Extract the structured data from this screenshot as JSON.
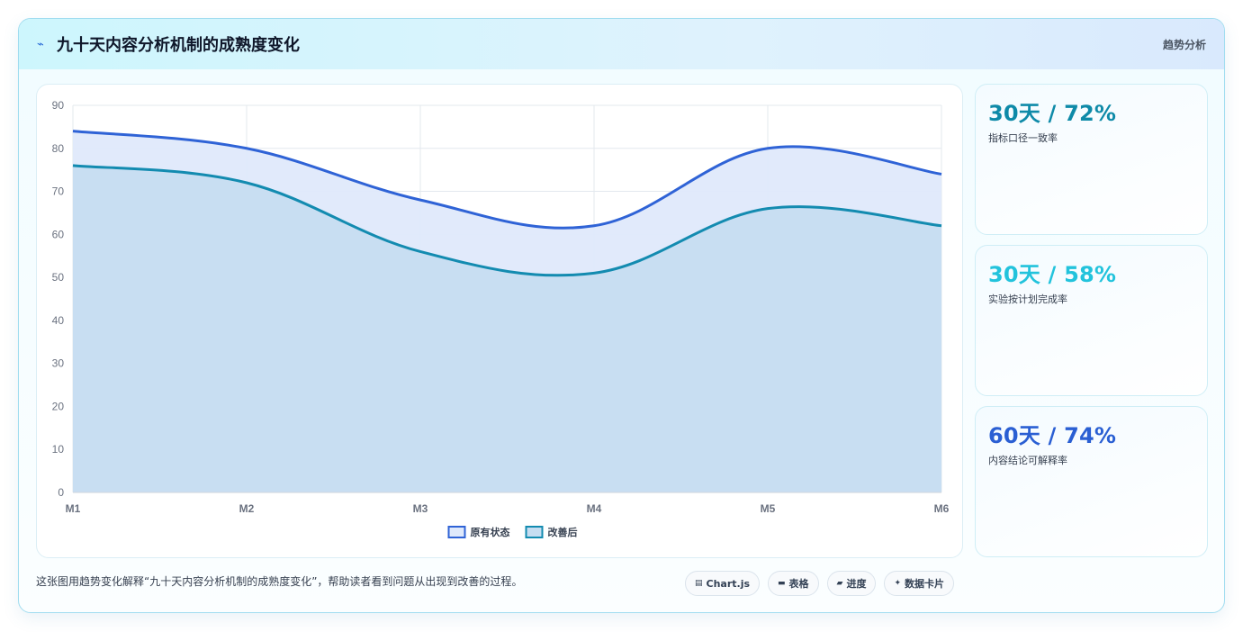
{
  "header": {
    "icon": "trend-icon",
    "title": "九十天内容分析机制的成熟度变化",
    "tag": "趋势分析"
  },
  "chart_data": {
    "type": "area",
    "categories": [
      "M1",
      "M2",
      "M3",
      "M4",
      "M5",
      "M6"
    ],
    "series": [
      {
        "name": "原有状态",
        "values": [
          84,
          80,
          68,
          62,
          80,
          74
        ],
        "color": "#2f63d6",
        "fill": "#dfe9fb"
      },
      {
        "name": "改善后",
        "values": [
          76,
          72,
          56,
          51,
          66,
          62
        ],
        "color": "#138bb0",
        "fill": "#c6ddf1"
      }
    ],
    "ylim": [
      0,
      90
    ],
    "yticks": [
      0,
      10,
      20,
      30,
      40,
      50,
      60,
      70,
      80,
      90
    ],
    "grid": true,
    "legend": "bottom"
  },
  "stats": [
    {
      "value": "30天 / 72%",
      "label": "指标口径一致率",
      "color": "#0e8aa8"
    },
    {
      "value": "30天 / 58%",
      "label": "实验按计划完成率",
      "color": "#22c3dc"
    },
    {
      "value": "60天 / 74%",
      "label": "内容结论可解释率",
      "color": "#2a5fd3"
    }
  ],
  "caption": "这张图用趋势变化解释“九十天内容分析机制的成熟度变化”，帮助读者看到问题从出现到改善的过程。",
  "chips": [
    {
      "icon": "chart-icon",
      "glyph": "▤",
      "label": "Chart.js"
    },
    {
      "icon": "table-icon",
      "glyph": "▬",
      "label": "表格"
    },
    {
      "icon": "progress-icon",
      "glyph": "▰",
      "label": "进度"
    },
    {
      "icon": "sparkle-icon",
      "glyph": "✦",
      "label": "数据卡片"
    }
  ]
}
